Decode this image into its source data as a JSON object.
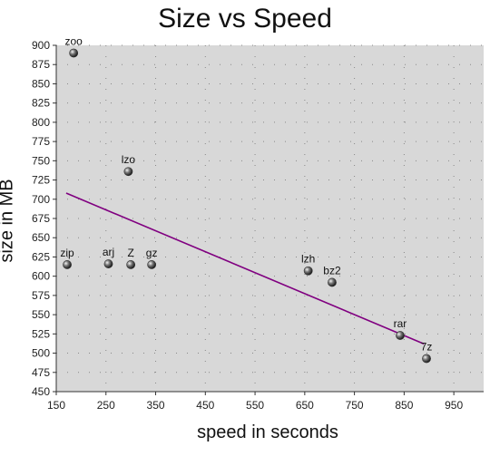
{
  "chart_data": {
    "type": "scatter",
    "title": "Size vs Speed",
    "xlabel": "speed in seconds",
    "ylabel": "size in MB",
    "xlim": [
      150,
      1010
    ],
    "ylim": [
      450,
      900
    ],
    "xticks": [
      150,
      250,
      350,
      450,
      550,
      650,
      750,
      850,
      950
    ],
    "yticks": [
      450,
      475,
      500,
      525,
      550,
      575,
      600,
      625,
      650,
      675,
      700,
      725,
      750,
      775,
      800,
      825,
      850,
      875,
      900
    ],
    "grid": true,
    "points": [
      {
        "label": "zoo",
        "x": 185,
        "y": 890
      },
      {
        "label": "lzo",
        "x": 295,
        "y": 736
      },
      {
        "label": "zip",
        "x": 172,
        "y": 615
      },
      {
        "label": "arj",
        "x": 255,
        "y": 616
      },
      {
        "label": "Z",
        "x": 300,
        "y": 615
      },
      {
        "label": "gz",
        "x": 342,
        "y": 615
      },
      {
        "label": "lzh",
        "x": 657,
        "y": 607
      },
      {
        "label": "bz2",
        "x": 705,
        "y": 592
      },
      {
        "label": "rar",
        "x": 842,
        "y": 523
      },
      {
        "label": "7z",
        "x": 895,
        "y": 493
      }
    ],
    "trendline": {
      "x": [
        170,
        890
      ],
      "y": [
        708,
        512
      ],
      "color": "#800080"
    },
    "colors": {
      "plot_background": "#d8d8d8",
      "grid_dots": "#888888",
      "point": "#333333"
    }
  }
}
